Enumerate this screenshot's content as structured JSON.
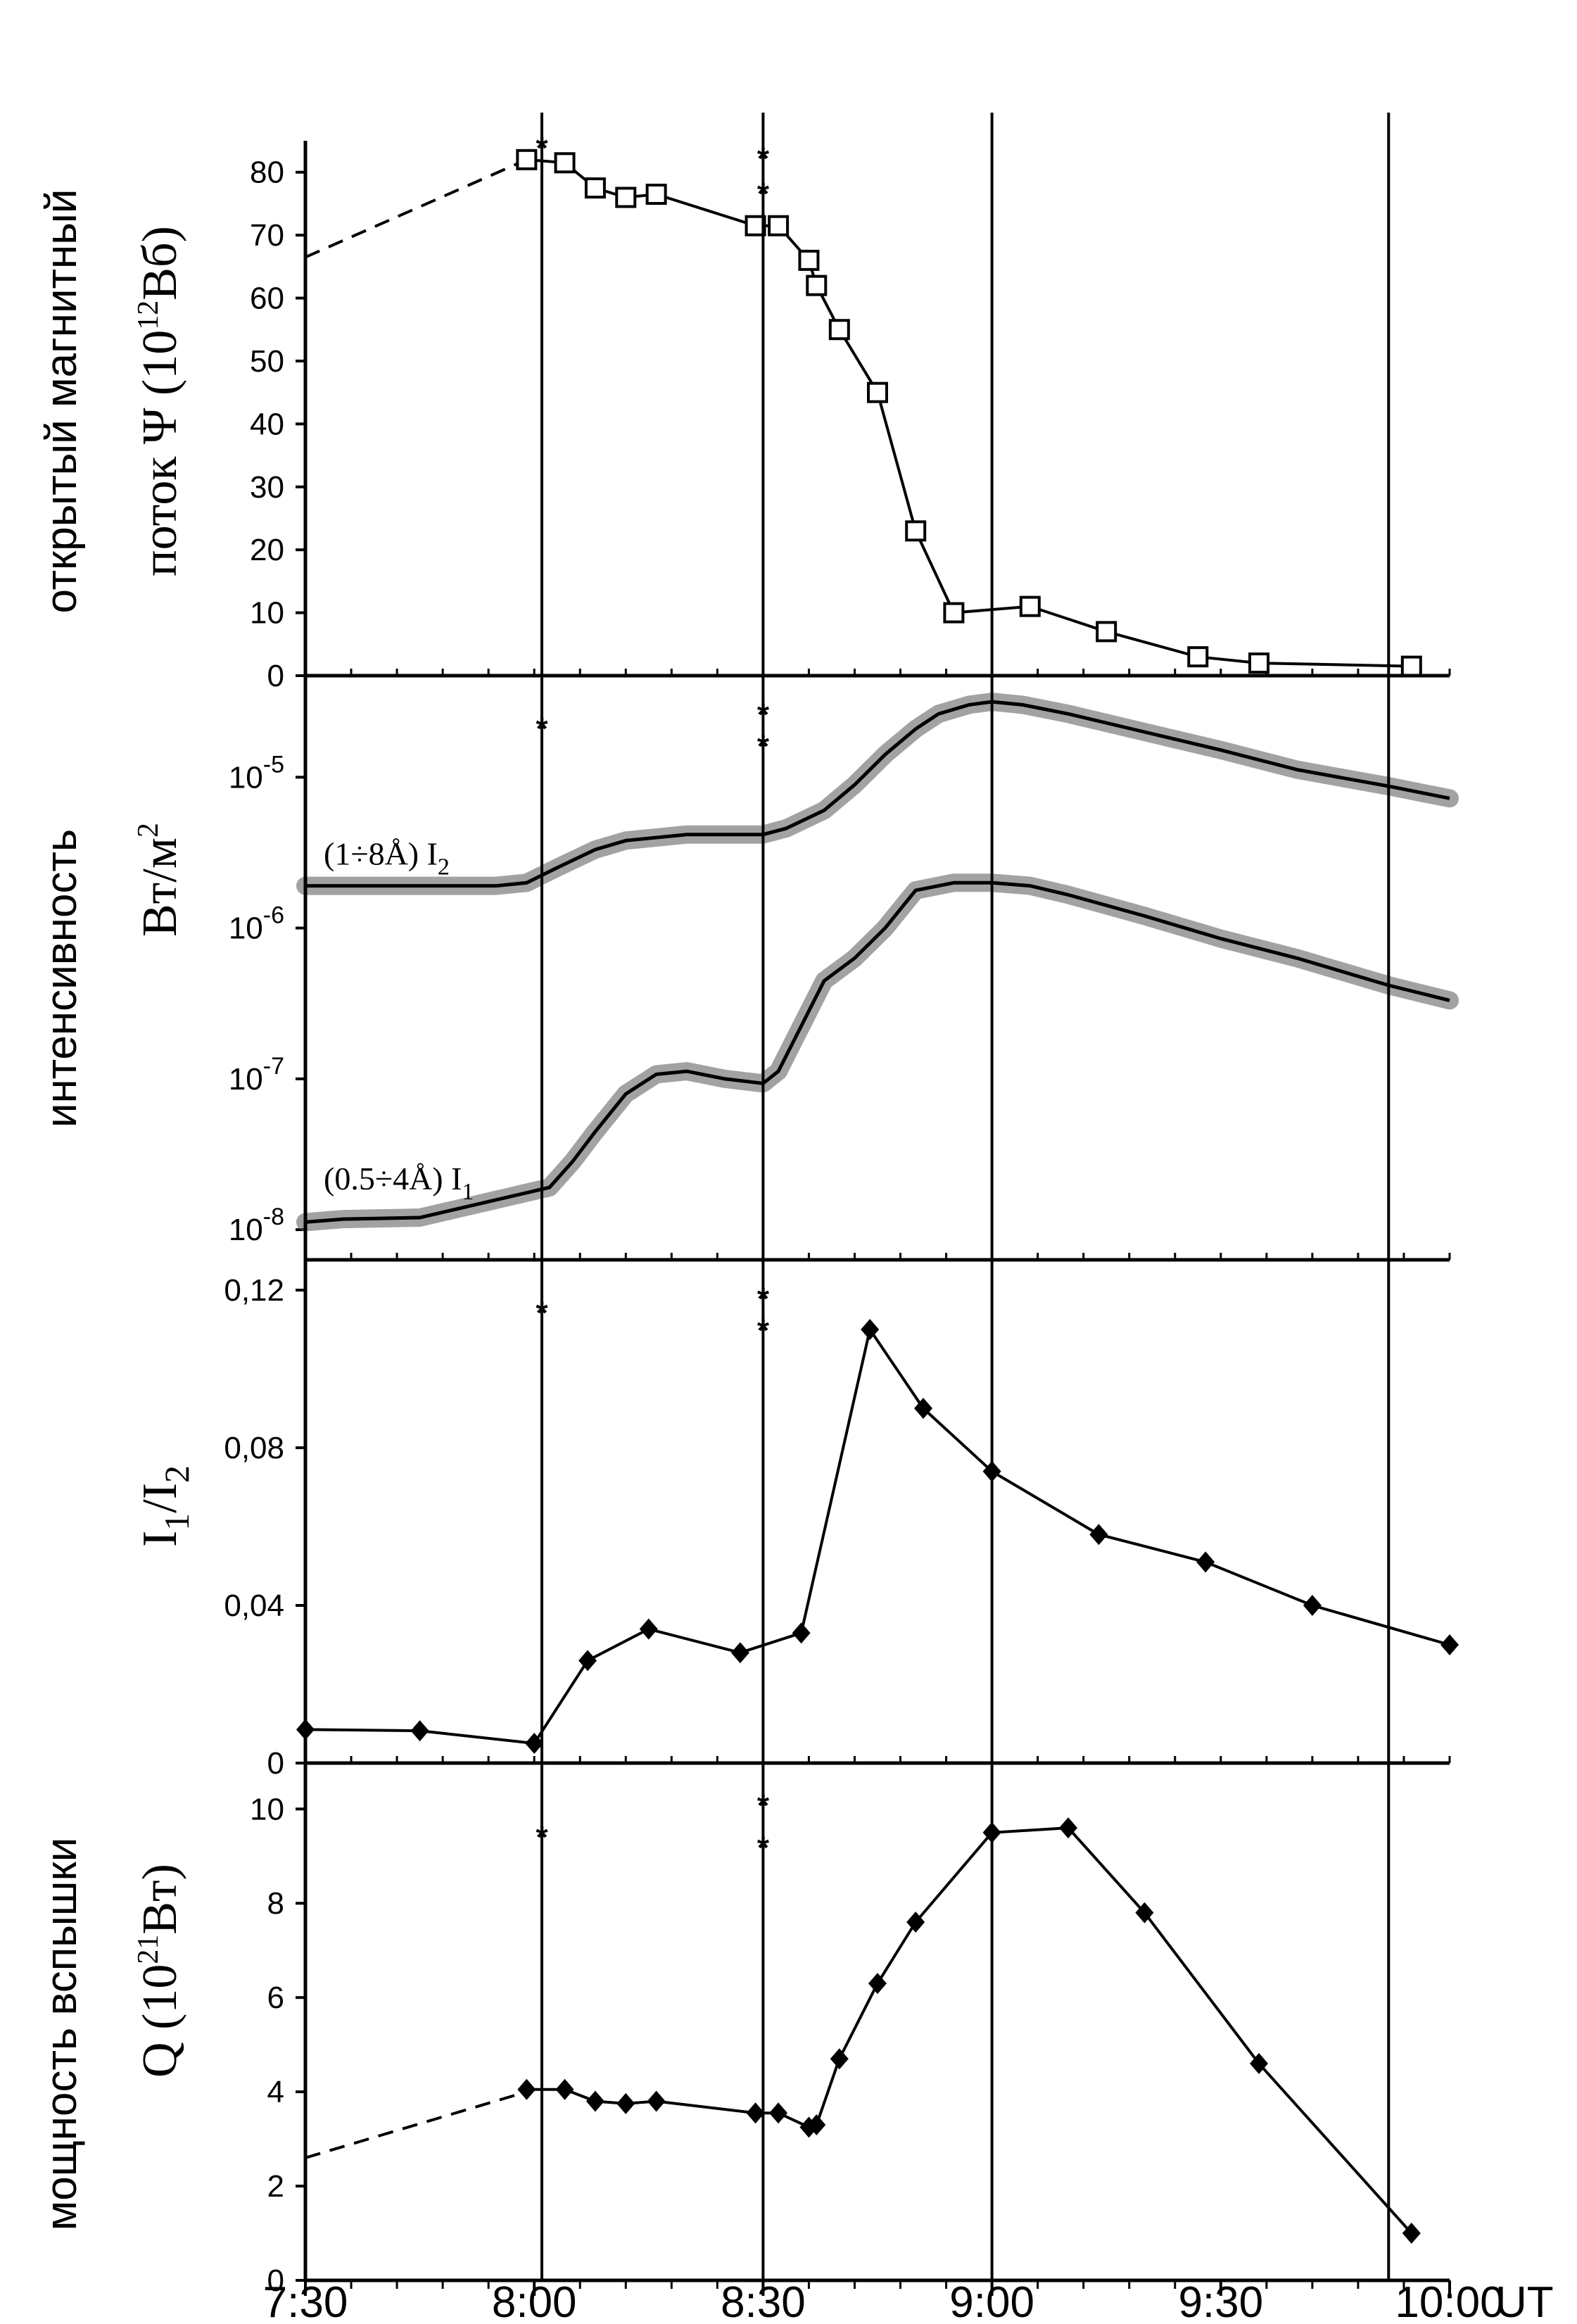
{
  "x_axis": {
    "ticks": [
      "7:30",
      "8:00",
      "8:30",
      "9:00",
      "9:30",
      "10:00"
    ],
    "tick_minutes": [
      450,
      480,
      510,
      540,
      570,
      600
    ],
    "unit": "UT",
    "range_minutes": [
      450,
      600
    ]
  },
  "event_lines_minutes": [
    481,
    510,
    540,
    592
  ],
  "chart_data": [
    {
      "type": "line",
      "panel": "flux",
      "ylabel_line1": "открытый магнитный",
      "ylabel_line2": "поток Ψ (10",
      "ylabel_sup": "12",
      "ylabel_tail": "Вб)",
      "ylim": [
        0,
        85
      ],
      "yticks": [
        0,
        10,
        20,
        30,
        40,
        50,
        60,
        70,
        80
      ],
      "ytick_labels": [
        "0",
        "10",
        "20",
        "30",
        "40",
        "50",
        "60",
        "70",
        "80"
      ],
      "markers": "square",
      "dashed_segment": {
        "x": [
          450,
          479
        ],
        "y": [
          66.5,
          82
        ]
      },
      "series": [
        {
          "x": [
            479,
            484,
            488,
            492,
            496,
            509,
            512,
            516,
            517,
            520,
            525,
            530,
            535,
            545,
            555,
            567,
            575,
            595
          ],
          "y": [
            82,
            81.5,
            77.5,
            76,
            76.5,
            71.5,
            71.5,
            66,
            62,
            55,
            45,
            23,
            10,
            11,
            7,
            3,
            2,
            1.5
          ]
        }
      ],
      "stars_minutes": [
        481,
        510
      ]
    },
    {
      "type": "line",
      "panel": "intensity",
      "ylabel_line1": "интенсивность",
      "ylabel_line2": "Вт/м",
      "ylabel_sup": "2",
      "log_scale": true,
      "ylim_exp": [
        -8.2,
        -4.35
      ],
      "ytick_exps": [
        -8,
        -7,
        -6,
        -5
      ],
      "ytick_base": "10",
      "series": [
        {
          "name": "I2",
          "label_text": "(1÷8Å)  I",
          "label_sub": "2",
          "x": [
            450,
            475,
            479,
            483,
            488,
            492,
            500,
            505,
            510,
            513,
            518,
            522,
            526,
            530,
            533,
            537,
            540,
            544,
            550,
            560,
            570,
            580,
            592,
            600
          ],
          "logy": [
            -5.72,
            -5.72,
            -5.7,
            -5.6,
            -5.48,
            -5.42,
            -5.38,
            -5.38,
            -5.38,
            -5.34,
            -5.22,
            -5.05,
            -4.85,
            -4.68,
            -4.58,
            -4.52,
            -4.5,
            -4.52,
            -4.58,
            -4.7,
            -4.82,
            -4.95,
            -5.06,
            -5.14
          ]
        },
        {
          "name": "I1",
          "label_text": "(0.5÷4Å) I",
          "label_sub": "1",
          "x": [
            450,
            455,
            465,
            482,
            485,
            488,
            492,
            496,
            500,
            505,
            510,
            512,
            515,
            518,
            522,
            526,
            530,
            535,
            540,
            545,
            550,
            560,
            570,
            580,
            592,
            600
          ],
          "logy": [
            -7.95,
            -7.93,
            -7.92,
            -7.72,
            -7.55,
            -7.35,
            -7.1,
            -6.97,
            -6.95,
            -7.0,
            -7.03,
            -6.95,
            -6.65,
            -6.35,
            -6.2,
            -6.0,
            -5.75,
            -5.7,
            -5.7,
            -5.72,
            -5.78,
            -5.92,
            -6.07,
            -6.2,
            -6.38,
            -6.48
          ]
        }
      ],
      "stars_minutes": [
        481,
        510
      ]
    },
    {
      "type": "line",
      "panel": "ratio",
      "ylabel": "I",
      "ylabel_sub1": "1",
      "ylabel_mid": "/I",
      "ylabel_sub2": "2",
      "ylim": [
        0,
        0.125
      ],
      "yticks": [
        0,
        0.04,
        0.08,
        0.12
      ],
      "ytick_labels": [
        "0",
        "0,04",
        "0,08",
        "0,12"
      ],
      "markers": "diamond",
      "series": [
        {
          "x": [
            450,
            465,
            480,
            487,
            495,
            507,
            515,
            524,
            531,
            540,
            554,
            568,
            582,
            600
          ],
          "y": [
            0.0085,
            0.0082,
            0.005,
            0.026,
            0.034,
            0.028,
            0.033,
            0.11,
            0.09,
            0.074,
            0.058,
            0.051,
            0.04,
            0.03
          ]
        }
      ],
      "stars_minutes": [
        481,
        510
      ]
    },
    {
      "type": "line",
      "panel": "power",
      "ylabel_line1": "мощность вспышки",
      "ylabel_line2": "Q (10",
      "ylabel_sup": "21",
      "ylabel_tail": "Вт)",
      "ylim": [
        0,
        10.9
      ],
      "yticks": [
        0,
        2,
        4,
        6,
        8,
        10
      ],
      "ytick_labels": [
        "0",
        "2",
        "4",
        "6",
        "8",
        "10"
      ],
      "markers": "diamond",
      "dashed_segment": {
        "x": [
          450,
          479
        ],
        "y": [
          2.6,
          4
        ]
      },
      "series": [
        {
          "x": [
            479,
            484,
            488,
            492,
            496,
            509,
            512,
            516,
            517,
            520,
            525,
            530,
            540,
            550,
            560,
            575,
            595
          ],
          "y": [
            4.05,
            4.05,
            3.8,
            3.75,
            3.8,
            3.55,
            3.55,
            3.25,
            3.3,
            4.7,
            6.3,
            7.6,
            9.5,
            9.6,
            7.8,
            4.6,
            1
          ]
        }
      ],
      "stars_minutes": [
        481,
        510
      ]
    }
  ]
}
